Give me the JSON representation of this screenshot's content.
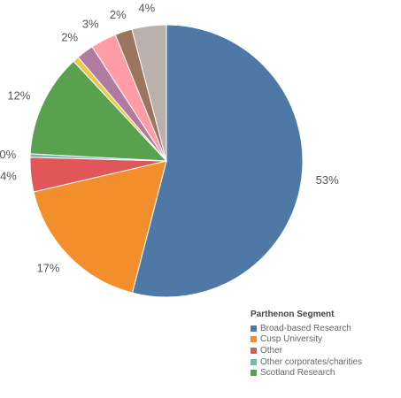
{
  "chart_data": {
    "type": "pie",
    "title": "",
    "slices": [
      {
        "label": "Broad-based Research",
        "value": 53,
        "display": "53%",
        "color": "#4e79a7"
      },
      {
        "label": "Cusp University",
        "value": 17,
        "display": "17%",
        "color": "#f28e2b"
      },
      {
        "label": "Other",
        "value": 4,
        "display": "4%",
        "color": "#e15759"
      },
      {
        "label": "Other corporates/charities",
        "value": 0.4,
        "display": "0%",
        "color": "#76b7b2"
      },
      {
        "label": "Scotland Research",
        "value": 12,
        "display": "12%",
        "color": "#59a14f"
      },
      {
        "label": "",
        "value": 0.7,
        "display": "",
        "color": "#edc948"
      },
      {
        "label": "",
        "value": 2,
        "display": "2%",
        "color": "#b07aa1"
      },
      {
        "label": "",
        "value": 3,
        "display": "3%",
        "color": "#ff9da7"
      },
      {
        "label": "",
        "value": 2,
        "display": "2%",
        "color": "#9c755f"
      },
      {
        "label": "",
        "value": 4,
        "display": "4%",
        "color": "#bab0ac"
      }
    ],
    "legend": {
      "title": "Parthenon Segment",
      "placement": "bottom-right",
      "items": [
        {
          "label": "Broad-based Research",
          "color": "#4e79a7"
        },
        {
          "label": "Cusp University",
          "color": "#f28e2b"
        },
        {
          "label": "Other",
          "color": "#e15759"
        },
        {
          "label": "Other corporates/charities",
          "color": "#76b7b2"
        },
        {
          "label": "Scotland Research",
          "color": "#59a14f"
        }
      ]
    }
  }
}
